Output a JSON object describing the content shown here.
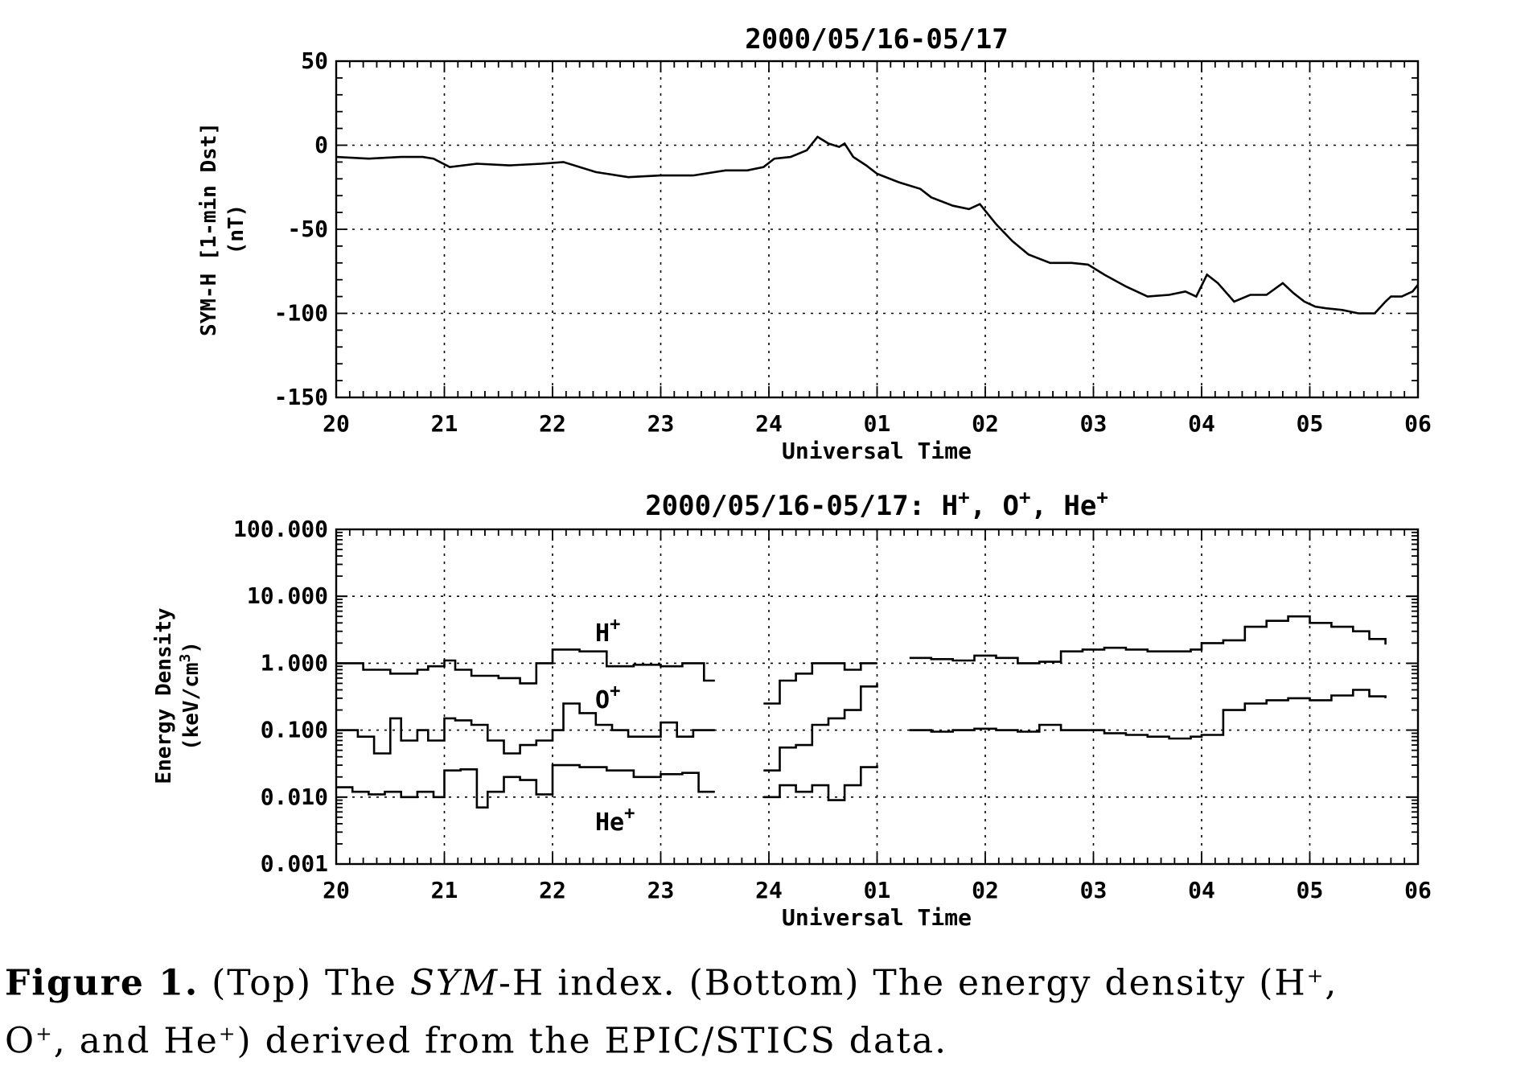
{
  "chart_data": [
    {
      "type": "line",
      "title": "2000/05/16-05/17",
      "xlabel": "Universal Time",
      "ylabel_line1": "SYM-H [1-min Dst]",
      "ylabel_line2": "(nT)",
      "x_ticks": [
        "20",
        "21",
        "22",
        "23",
        "24",
        "01",
        "02",
        "03",
        "04",
        "05",
        "06"
      ],
      "x_range_hours": [
        20,
        30
      ],
      "ylim": [
        -150,
        50
      ],
      "y_ticks": [
        50,
        0,
        -50,
        -100,
        -150
      ],
      "grid": true,
      "series": [
        {
          "x_hours": [
            20,
            20.3,
            20.6,
            20.8,
            20.9,
            21.05,
            21.3,
            21.6,
            21.9,
            22.1,
            22.4,
            22.7,
            23.0,
            23.3,
            23.6,
            23.8,
            23.95,
            24.05,
            24.2,
            24.35,
            24.45,
            24.55,
            24.65,
            24.7,
            24.78,
            24.9,
            25.0,
            25.2,
            25.4,
            25.5,
            25.7,
            25.85,
            25.95,
            26.1,
            26.25,
            26.4,
            26.6,
            26.8,
            26.95,
            27.1,
            27.3,
            27.5,
            27.7,
            27.85,
            27.95,
            28.05,
            28.15,
            28.3,
            28.45,
            28.6,
            28.75,
            28.85,
            28.95,
            29.05,
            29.15,
            29.3,
            29.45,
            29.6,
            29.7,
            29.75,
            29.85,
            29.95,
            30.0
          ],
          "y_nT": [
            -7,
            -8,
            -7,
            -7,
            -8,
            -13,
            -11,
            -12,
            -11,
            -10,
            -16,
            -19,
            -18,
            -18,
            -15,
            -15,
            -13,
            -8,
            -7,
            -3,
            5,
            1,
            -1,
            1,
            -7,
            -12,
            -17,
            -22,
            -26,
            -31,
            -36,
            -38,
            -35,
            -47,
            -57,
            -65,
            -70,
            -70,
            -71,
            -77,
            -84,
            -90,
            -89,
            -87,
            -90,
            -77,
            -82,
            -93,
            -89,
            -89,
            -82,
            -88,
            -93,
            -96,
            -97,
            -98,
            -100,
            -100,
            -93,
            -90,
            -90,
            -87,
            -83
          ]
        }
      ]
    },
    {
      "type": "line",
      "title_text": "2000/05/16-05/17: H",
      "title_sup1": "+",
      "title_mid1": ", O",
      "title_sup2": "+",
      "title_mid2": ", He",
      "title_sup3": "+",
      "xlabel": "Universal Time",
      "ylabel_line1": "Energy Density",
      "ylabel_line2": "(keV/cm",
      "ylabel_sup": "3",
      "ylabel_end": ")",
      "x_ticks": [
        "20",
        "21",
        "22",
        "23",
        "24",
        "01",
        "02",
        "03",
        "04",
        "05",
        "06"
      ],
      "x_range_hours": [
        20,
        30
      ],
      "yscale": "log",
      "ylim": [
        0.001,
        100
      ],
      "y_ticks": [
        "100.000",
        "10.000",
        "1.000",
        "0.100",
        "0.010",
        "0.001"
      ],
      "grid": true,
      "annotations": [
        {
          "base": "H",
          "sup": "+"
        },
        {
          "base": "O",
          "sup": "+"
        },
        {
          "base": "He",
          "sup": "+"
        }
      ],
      "series": [
        {
          "name": "H+",
          "segments": [
            {
              "x_hours": [
                20,
                20.25,
                20.5,
                20.75,
                20.85,
                21,
                21.1,
                21.25,
                21.5,
                21.7,
                21.85,
                22,
                22.25,
                22.5,
                22.75,
                23,
                23.2,
                23.4,
                23.5
              ],
              "values": [
                1.0,
                0.8,
                0.7,
                0.8,
                0.9,
                1.1,
                0.8,
                0.65,
                0.6,
                0.5,
                1.0,
                1.6,
                1.5,
                0.9,
                0.95,
                0.9,
                1.0,
                0.55,
                0.55
              ]
            },
            {
              "x_hours": [
                23.95,
                24.1,
                24.25,
                24.4,
                24.55,
                24.7,
                24.85,
                25.0
              ],
              "values": [
                0.25,
                0.55,
                0.7,
                1.0,
                1.0,
                0.8,
                1.0,
                1.0
              ]
            },
            {
              "x_hours": [
                25.3,
                25.5,
                25.7,
                25.9,
                26.1,
                26.3,
                26.5,
                26.7,
                26.9,
                27.1,
                27.3,
                27.5,
                27.7,
                27.9,
                28.0,
                28.2,
                28.4,
                28.6,
                28.8,
                29.0,
                29.2,
                29.4,
                29.55,
                29.7
              ],
              "values": [
                1.2,
                1.15,
                1.1,
                1.3,
                1.2,
                1.0,
                1.05,
                1.5,
                1.6,
                1.7,
                1.6,
                1.5,
                1.5,
                1.6,
                2.0,
                2.2,
                3.5,
                4.3,
                5.0,
                4.0,
                3.5,
                3.0,
                2.3,
                1.9
              ]
            }
          ]
        },
        {
          "name": "O+",
          "segments": [
            {
              "x_hours": [
                20,
                20.2,
                20.35,
                20.5,
                20.6,
                20.75,
                20.85,
                21,
                21.1,
                21.25,
                21.4,
                21.55,
                21.7,
                21.85,
                22,
                22.1,
                22.25,
                22.4,
                22.55,
                22.7,
                22.85,
                23,
                23.15,
                23.3,
                23.5
              ],
              "values": [
                0.1,
                0.08,
                0.045,
                0.15,
                0.07,
                0.1,
                0.07,
                0.15,
                0.14,
                0.12,
                0.07,
                0.045,
                0.06,
                0.07,
                0.1,
                0.25,
                0.18,
                0.12,
                0.1,
                0.08,
                0.08,
                0.13,
                0.08,
                0.1,
                0.1
              ]
            },
            {
              "x_hours": [
                23.95,
                24.1,
                24.25,
                24.4,
                24.55,
                24.7,
                24.85,
                25.0
              ],
              "values": [
                0.025,
                0.055,
                0.06,
                0.12,
                0.15,
                0.2,
                0.45,
                0.5
              ]
            },
            {
              "x_hours": [
                25.3,
                25.5,
                25.7,
                25.9,
                26.1,
                26.3,
                26.5,
                26.7,
                26.9,
                27.1,
                27.3,
                27.5,
                27.7,
                27.9,
                28.0,
                28.2,
                28.4,
                28.6,
                28.8,
                29.0,
                29.2,
                29.4,
                29.55,
                29.7
              ],
              "values": [
                0.1,
                0.095,
                0.1,
                0.105,
                0.1,
                0.095,
                0.12,
                0.1,
                0.1,
                0.09,
                0.085,
                0.08,
                0.075,
                0.08,
                0.085,
                0.2,
                0.25,
                0.28,
                0.3,
                0.28,
                0.33,
                0.4,
                0.32,
                0.3
              ]
            }
          ]
        },
        {
          "name": "He+",
          "segments": [
            {
              "x_hours": [
                20,
                20.15,
                20.3,
                20.45,
                20.6,
                20.75,
                20.9,
                21,
                21.15,
                21.3,
                21.4,
                21.55,
                21.7,
                21.85,
                22,
                22.25,
                22.5,
                22.75,
                23,
                23.2,
                23.35,
                23.5
              ],
              "values": [
                0.014,
                0.012,
                0.011,
                0.012,
                0.01,
                0.012,
                0.01,
                0.025,
                0.026,
                0.007,
                0.012,
                0.02,
                0.018,
                0.011,
                0.03,
                0.028,
                0.025,
                0.02,
                0.022,
                0.023,
                0.012,
                0.012
              ]
            },
            {
              "x_hours": [
                23.95,
                24.1,
                24.25,
                24.4,
                24.55,
                24.7,
                24.85,
                25.0
              ],
              "values": [
                0.01,
                0.015,
                0.012,
                0.015,
                0.009,
                0.015,
                0.028,
                0.03
              ]
            }
          ]
        }
      ]
    }
  ],
  "caption": {
    "label": "Figure 1.",
    "line1_a": " (Top) The ",
    "line1_italic": "SYM",
    "line1_b": "-H index.  (Bottom) The energy density (H",
    "sup": "+",
    "line1_c": ",",
    "line2_a": "O",
    "line2_b": ", and He",
    "line2_c": ") derived from the EPIC/STICS data."
  }
}
